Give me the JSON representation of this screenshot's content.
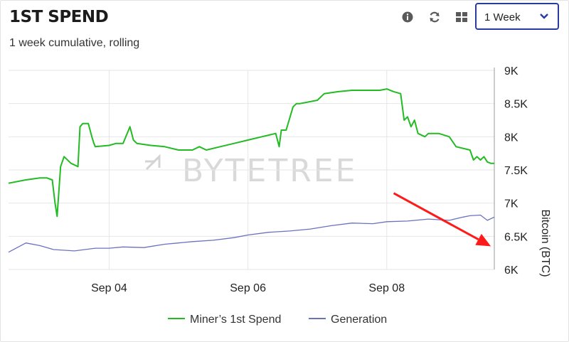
{
  "header": {
    "title": "1ST SPEND",
    "subtitle": "1 week cumulative, rolling",
    "icons": [
      "info-icon",
      "refresh-icon",
      "grid-icon"
    ],
    "range_select": {
      "value": "1 Week"
    }
  },
  "watermark": "BYTETREE",
  "colors": {
    "miner": "#22bb22",
    "generation": "#6a72c0",
    "arrow": "#ff1a1a",
    "select_border": "#2a3aa0"
  },
  "chart_data": {
    "type": "line",
    "ylabel": "Bitcoin (BTC)",
    "ylim": [
      6000,
      9000
    ],
    "yticks": [
      6000,
      6500,
      7000,
      7500,
      8000,
      8500,
      9000
    ],
    "ytick_labels": [
      "6K",
      "6.5K",
      "7K",
      "7.5K",
      "8K",
      "8.5K",
      "9K"
    ],
    "xlim": [
      2.55,
      9.55
    ],
    "xticks": [
      4,
      6,
      8
    ],
    "xtick_labels": [
      "Sep 04",
      "Sep 06",
      "Sep 08"
    ],
    "grid": true,
    "legend_position": "bottom",
    "series": [
      {
        "name": "Miner’s 1st Spend",
        "x": [
          2.55,
          2.8,
          3.0,
          3.1,
          3.18,
          3.22,
          3.25,
          3.3,
          3.35,
          3.45,
          3.55,
          3.58,
          3.62,
          3.7,
          3.75,
          3.78,
          3.8,
          4.0,
          4.1,
          4.2,
          4.3,
          4.35,
          4.4,
          4.6,
          4.8,
          5.0,
          5.2,
          5.3,
          5.4,
          5.6,
          5.8,
          6.0,
          6.2,
          6.4,
          6.45,
          6.48,
          6.55,
          6.65,
          6.7,
          6.75,
          7.0,
          7.1,
          7.3,
          7.5,
          7.7,
          7.9,
          8.0,
          8.1,
          8.2,
          8.25,
          8.3,
          8.35,
          8.4,
          8.45,
          8.55,
          8.6,
          8.75,
          8.9,
          9.0,
          9.2,
          9.25,
          9.3,
          9.35,
          9.4,
          9.45,
          9.5,
          9.55
        ],
        "values": [
          7300,
          7350,
          7380,
          7380,
          7350,
          7000,
          6800,
          7550,
          7700,
          7600,
          7550,
          8150,
          8200,
          8200,
          8000,
          7900,
          7850,
          7870,
          7900,
          7900,
          8150,
          7950,
          7900,
          7870,
          7850,
          7800,
          7800,
          7850,
          7800,
          7850,
          7900,
          7950,
          8000,
          8050,
          7850,
          8100,
          8100,
          8450,
          8500,
          8500,
          8550,
          8650,
          8680,
          8700,
          8700,
          8700,
          8720,
          8680,
          8650,
          8250,
          8300,
          8150,
          8250,
          8050,
          8000,
          8050,
          8050,
          8000,
          7850,
          7800,
          7650,
          7700,
          7650,
          7700,
          7620,
          7600,
          7600
        ]
      },
      {
        "name": "Generation",
        "x": [
          2.55,
          2.8,
          3.0,
          3.2,
          3.5,
          3.8,
          4.0,
          4.2,
          4.5,
          4.8,
          5.0,
          5.2,
          5.5,
          5.8,
          6.0,
          6.3,
          6.6,
          6.9,
          7.2,
          7.5,
          7.8,
          8.0,
          8.3,
          8.6,
          8.9,
          9.1,
          9.2,
          9.35,
          9.45,
          9.55
        ],
        "values": [
          6260,
          6400,
          6360,
          6300,
          6280,
          6320,
          6320,
          6340,
          6330,
          6380,
          6400,
          6420,
          6440,
          6480,
          6520,
          6560,
          6580,
          6610,
          6660,
          6700,
          6690,
          6720,
          6730,
          6760,
          6740,
          6790,
          6810,
          6820,
          6740,
          6790
        ]
      }
    ],
    "annotations": [
      {
        "type": "arrow",
        "from": [
          8.1,
          7150
        ],
        "to": [
          9.5,
          6350
        ],
        "color": "#ff1a1a"
      }
    ]
  }
}
